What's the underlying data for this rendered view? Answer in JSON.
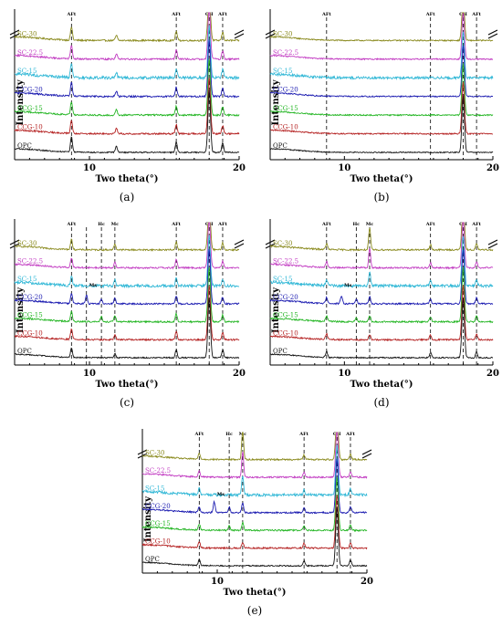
{
  "series_labels": [
    "SC-30",
    "SC-22.5",
    "SC-15",
    "CCG-20",
    "CCG-15",
    "CCG-10",
    "OPC"
  ],
  "chart_data": [
    {
      "type": "line",
      "panel_label": "(a)",
      "xlabel": "Two theta(°)",
      "ylabel": "Intensity",
      "xlim": [
        5,
        20
      ],
      "xticks": [
        "10",
        "20"
      ],
      "reference_lines": [
        {
          "x": 8.8,
          "label": "AFt"
        },
        {
          "x": 15.8,
          "label": "AFt"
        },
        {
          "x": 18.0,
          "label": "CH"
        },
        {
          "x": 18.9,
          "label": "AFt"
        }
      ],
      "series": [
        {
          "name": "SC-30",
          "color": "#8a8a1e",
          "offset": 6,
          "peaks": [
            [
              8.8,
              1.3
            ],
            [
              11.8,
              0.5
            ],
            [
              15.8,
              0.9
            ],
            [
              18.0,
              5.0
            ],
            [
              18.9,
              0.8
            ]
          ],
          "noise": 0.08
        },
        {
          "name": "SC-22.5",
          "color": "#c23cc2",
          "offset": 5,
          "peaks": [
            [
              8.8,
              1.3
            ],
            [
              11.8,
              0.5
            ],
            [
              15.8,
              0.9
            ],
            [
              18.0,
              5.0
            ],
            [
              18.9,
              0.8
            ]
          ],
          "noise": 0.08
        },
        {
          "name": "SC-15",
          "color": "#2fb7d6",
          "offset": 4,
          "peaks": [
            [
              8.8,
              1.3
            ],
            [
              11.8,
              0.5
            ],
            [
              15.8,
              0.9
            ],
            [
              18.0,
              5.0
            ],
            [
              18.9,
              0.8
            ]
          ],
          "noise": 0.14
        },
        {
          "name": "CCG-20",
          "color": "#1a1ab0",
          "offset": 3,
          "peaks": [
            [
              8.8,
              1.3
            ],
            [
              11.8,
              0.5
            ],
            [
              15.8,
              0.9
            ],
            [
              18.0,
              5.5
            ],
            [
              18.9,
              0.8
            ]
          ],
          "noise": 0.08
        },
        {
          "name": "CCG-15",
          "color": "#22b522",
          "offset": 2,
          "peaks": [
            [
              8.8,
              1.3
            ],
            [
              11.8,
              0.5
            ],
            [
              15.8,
              0.9
            ],
            [
              18.0,
              5.5
            ],
            [
              18.9,
              0.8
            ]
          ],
          "noise": 0.08
        },
        {
          "name": "CCG-10",
          "color": "#b42020",
          "offset": 1,
          "peaks": [
            [
              8.8,
              1.3
            ],
            [
              11.8,
              0.5
            ],
            [
              15.8,
              0.9
            ],
            [
              18.0,
              5.5
            ],
            [
              18.9,
              0.8
            ]
          ],
          "noise": 0.08
        },
        {
          "name": "OPC",
          "color": "#111111",
          "offset": 0,
          "peaks": [
            [
              8.8,
              1.5
            ],
            [
              11.8,
              0.6
            ],
            [
              15.8,
              1.0
            ],
            [
              18.0,
              6.0
            ],
            [
              18.9,
              0.9
            ]
          ],
          "noise": 0.06
        }
      ]
    },
    {
      "type": "line",
      "panel_label": "(b)",
      "xlabel": "Two theta(°)",
      "ylabel": "Intensity",
      "xlim": [
        5,
        20
      ],
      "xticks": [
        "10",
        "20"
      ],
      "reference_lines": [
        {
          "x": 8.8,
          "label": "AFt"
        },
        {
          "x": 15.8,
          "label": "AFt"
        },
        {
          "x": 18.0,
          "label": "CH"
        },
        {
          "x": 18.9,
          "label": "AFt"
        }
      ],
      "series": [
        {
          "name": "SC-30",
          "color": "#8a8a1e",
          "offset": 6,
          "peaks": [
            [
              18.0,
              4.5
            ]
          ],
          "noise": 0.06
        },
        {
          "name": "SC-22.5",
          "color": "#c23cc2",
          "offset": 5,
          "peaks": [
            [
              18.0,
              4.5
            ]
          ],
          "noise": 0.06
        },
        {
          "name": "SC-15",
          "color": "#2fb7d6",
          "offset": 4,
          "peaks": [
            [
              18.0,
              4.5
            ]
          ],
          "noise": 0.12
        },
        {
          "name": "CCG-20",
          "color": "#1a1ab0",
          "offset": 3,
          "peaks": [
            [
              18.0,
              5.0
            ]
          ],
          "noise": 0.06
        },
        {
          "name": "CCG-15",
          "color": "#22b522",
          "offset": 2,
          "peaks": [
            [
              18.0,
              5.0
            ]
          ],
          "noise": 0.06
        },
        {
          "name": "CCG-10",
          "color": "#b42020",
          "offset": 1,
          "peaks": [
            [
              18.0,
              5.0
            ]
          ],
          "noise": 0.06
        },
        {
          "name": "OPC",
          "color": "#111111",
          "offset": 0,
          "peaks": [
            [
              18.0,
              5.5
            ]
          ],
          "noise": 0.05
        }
      ]
    },
    {
      "type": "line",
      "panel_label": "(c)",
      "xlabel": "Two theta(°)",
      "ylabel": "Intensity",
      "xlim": [
        5,
        20
      ],
      "xticks": [
        "10",
        "20"
      ],
      "reference_lines": [
        {
          "x": 8.8,
          "label": "AFt"
        },
        {
          "x": 9.8,
          "label": ""
        },
        {
          "x": 10.8,
          "label": "Hc"
        },
        {
          "x": 11.7,
          "label": "Mc"
        },
        {
          "x": 15.8,
          "label": "AFt"
        },
        {
          "x": 18.0,
          "label": "CH"
        },
        {
          "x": 18.9,
          "label": "AFt"
        }
      ],
      "annotations": [
        {
          "x": 9.8,
          "series": "CCG-20",
          "text": "Ms"
        }
      ],
      "series": [
        {
          "name": "SC-30",
          "color": "#8a8a1e",
          "offset": 6,
          "peaks": [
            [
              8.8,
              1.0
            ],
            [
              11.7,
              0.6
            ],
            [
              15.8,
              0.8
            ],
            [
              18.0,
              5.0
            ],
            [
              18.9,
              0.7
            ]
          ],
          "noise": 0.08
        },
        {
          "name": "SC-22.5",
          "color": "#c23cc2",
          "offset": 5,
          "peaks": [
            [
              8.8,
              1.0
            ],
            [
              11.7,
              0.6
            ],
            [
              15.8,
              0.8
            ],
            [
              18.0,
              5.0
            ],
            [
              18.9,
              0.7
            ]
          ],
          "noise": 0.08
        },
        {
          "name": "SC-15",
          "color": "#2fb7d6",
          "offset": 4,
          "peaks": [
            [
              8.8,
              1.0
            ],
            [
              11.7,
              0.6
            ],
            [
              15.8,
              0.8
            ],
            [
              18.0,
              5.0
            ],
            [
              18.9,
              0.7
            ]
          ],
          "noise": 0.14
        },
        {
          "name": "CCG-20",
          "color": "#1a1ab0",
          "offset": 3,
          "peaks": [
            [
              8.8,
              1.0
            ],
            [
              9.8,
              0.9
            ],
            [
              10.8,
              0.5
            ],
            [
              11.7,
              0.6
            ],
            [
              15.8,
              0.8
            ],
            [
              18.0,
              5.5
            ],
            [
              18.9,
              0.7
            ]
          ],
          "noise": 0.08
        },
        {
          "name": "CCG-15",
          "color": "#22b522",
          "offset": 2,
          "peaks": [
            [
              8.8,
              1.0
            ],
            [
              10.8,
              0.5
            ],
            [
              11.7,
              0.6
            ],
            [
              15.8,
              0.8
            ],
            [
              18.0,
              5.5
            ],
            [
              18.9,
              0.7
            ]
          ],
          "noise": 0.08
        },
        {
          "name": "CCG-10",
          "color": "#b42020",
          "offset": 1,
          "peaks": [
            [
              8.8,
              1.0
            ],
            [
              11.7,
              0.5
            ],
            [
              15.8,
              0.8
            ],
            [
              18.0,
              5.5
            ],
            [
              18.9,
              0.7
            ]
          ],
          "noise": 0.08
        },
        {
          "name": "OPC",
          "color": "#111111",
          "offset": 0,
          "peaks": [
            [
              8.8,
              1.0
            ],
            [
              11.7,
              0.4
            ],
            [
              15.8,
              0.8
            ],
            [
              18.0,
              6.0
            ],
            [
              18.9,
              0.8
            ]
          ],
          "noise": 0.06
        }
      ]
    },
    {
      "type": "line",
      "panel_label": "(d)",
      "xlabel": "Two theta(°)",
      "ylabel": "Intensity",
      "xlim": [
        5,
        20
      ],
      "xticks": [
        "10",
        "20"
      ],
      "reference_lines": [
        {
          "x": 8.8,
          "label": "AFt"
        },
        {
          "x": 10.8,
          "label": "Hc"
        },
        {
          "x": 11.7,
          "label": "Mc"
        },
        {
          "x": 15.8,
          "label": "AFt"
        },
        {
          "x": 18.0,
          "label": "CH"
        },
        {
          "x": 18.9,
          "label": "AFt"
        }
      ],
      "annotations": [
        {
          "x": 9.8,
          "series": "CCG-20",
          "text": "Ms"
        }
      ],
      "series": [
        {
          "name": "SC-30",
          "color": "#8a8a1e",
          "offset": 6,
          "peaks": [
            [
              8.8,
              0.6
            ],
            [
              11.7,
              2.2
            ],
            [
              15.8,
              0.5
            ],
            [
              18.0,
              5.0
            ],
            [
              18.9,
              0.6
            ]
          ],
          "noise": 0.08
        },
        {
          "name": "SC-22.5",
          "color": "#c23cc2",
          "offset": 5,
          "peaks": [
            [
              8.8,
              0.6
            ],
            [
              11.7,
              2.0
            ],
            [
              15.8,
              0.5
            ],
            [
              18.0,
              5.0
            ],
            [
              18.9,
              0.6
            ]
          ],
          "noise": 0.08
        },
        {
          "name": "SC-15",
          "color": "#2fb7d6",
          "offset": 4,
          "peaks": [
            [
              8.8,
              0.6
            ],
            [
              11.7,
              1.4
            ],
            [
              15.8,
              0.5
            ],
            [
              18.0,
              5.0
            ],
            [
              18.9,
              0.6
            ]
          ],
          "noise": 0.14
        },
        {
          "name": "CCG-20",
          "color": "#1a1ab0",
          "offset": 3,
          "peaks": [
            [
              8.8,
              0.6
            ],
            [
              9.8,
              0.8
            ],
            [
              10.8,
              0.5
            ],
            [
              11.7,
              0.7
            ],
            [
              15.8,
              0.5
            ],
            [
              18.0,
              5.5
            ],
            [
              18.9,
              0.6
            ]
          ],
          "noise": 0.08
        },
        {
          "name": "CCG-15",
          "color": "#22b522",
          "offset": 2,
          "peaks": [
            [
              8.8,
              0.6
            ],
            [
              10.8,
              0.4
            ],
            [
              11.7,
              0.6
            ],
            [
              15.8,
              0.5
            ],
            [
              18.0,
              5.5
            ],
            [
              18.9,
              0.6
            ]
          ],
          "noise": 0.08
        },
        {
          "name": "CCG-10",
          "color": "#b42020",
          "offset": 1,
          "peaks": [
            [
              8.8,
              0.6
            ],
            [
              11.7,
              0.5
            ],
            [
              15.8,
              0.5
            ],
            [
              18.0,
              5.5
            ],
            [
              18.9,
              0.6
            ]
          ],
          "noise": 0.08
        },
        {
          "name": "OPC",
          "color": "#111111",
          "offset": 0,
          "peaks": [
            [
              8.8,
              0.6
            ],
            [
              15.8,
              0.5
            ],
            [
              18.0,
              6.0
            ],
            [
              18.9,
              0.6
            ]
          ],
          "noise": 0.06
        }
      ]
    },
    {
      "type": "line",
      "panel_label": "(e)",
      "xlabel": "Two theta(°)",
      "ylabel": "Intensity",
      "xlim": [
        5,
        20
      ],
      "xticks": [
        "10",
        "20"
      ],
      "reference_lines": [
        {
          "x": 8.8,
          "label": "AFt"
        },
        {
          "x": 10.8,
          "label": "Hc"
        },
        {
          "x": 11.7,
          "label": "Mc"
        },
        {
          "x": 15.8,
          "label": "AFt"
        },
        {
          "x": 18.0,
          "label": "CH"
        },
        {
          "x": 18.9,
          "label": "AFt"
        }
      ],
      "annotations": [
        {
          "x": 9.8,
          "series": "CCG-20",
          "text": "Ms"
        }
      ],
      "series": [
        {
          "name": "SC-30",
          "color": "#8a8a1e",
          "offset": 6,
          "peaks": [
            [
              8.8,
              0.6
            ],
            [
              11.7,
              3.0
            ],
            [
              15.8,
              0.5
            ],
            [
              18.0,
              5.0
            ],
            [
              18.9,
              0.6
            ]
          ],
          "noise": 0.08
        },
        {
          "name": "SC-22.5",
          "color": "#c23cc2",
          "offset": 5,
          "peaks": [
            [
              8.8,
              0.6
            ],
            [
              11.7,
              2.6
            ],
            [
              15.8,
              0.5
            ],
            [
              18.0,
              5.0
            ],
            [
              18.9,
              0.6
            ]
          ],
          "noise": 0.08
        },
        {
          "name": "SC-15",
          "color": "#2fb7d6",
          "offset": 4,
          "peaks": [
            [
              8.8,
              0.6
            ],
            [
              11.7,
              2.0
            ],
            [
              15.8,
              0.5
            ],
            [
              18.0,
              5.0
            ],
            [
              18.9,
              0.6
            ]
          ],
          "noise": 0.14
        },
        {
          "name": "CCG-20",
          "color": "#1a1ab0",
          "offset": 3,
          "peaks": [
            [
              8.8,
              0.6
            ],
            [
              9.8,
              1.1
            ],
            [
              10.8,
              0.6
            ],
            [
              11.7,
              1.0
            ],
            [
              15.8,
              0.5
            ],
            [
              18.0,
              5.5
            ],
            [
              18.9,
              0.6
            ]
          ],
          "noise": 0.08
        },
        {
          "name": "CCG-15",
          "color": "#22b522",
          "offset": 2,
          "peaks": [
            [
              8.8,
              0.6
            ],
            [
              10.8,
              0.5
            ],
            [
              11.7,
              0.8
            ],
            [
              15.8,
              0.5
            ],
            [
              18.0,
              5.5
            ],
            [
              18.9,
              0.6
            ]
          ],
          "noise": 0.08
        },
        {
          "name": "CCG-10",
          "color": "#b42020",
          "offset": 1,
          "peaks": [
            [
              8.8,
              0.6
            ],
            [
              11.7,
              0.6
            ],
            [
              15.8,
              0.5
            ],
            [
              18.0,
              5.5
            ],
            [
              18.9,
              0.6
            ]
          ],
          "noise": 0.08
        },
        {
          "name": "OPC",
          "color": "#111111",
          "offset": 0,
          "peaks": [
            [
              8.8,
              0.6
            ],
            [
              15.8,
              0.5
            ],
            [
              18.0,
              6.0
            ],
            [
              18.9,
              0.6
            ]
          ],
          "noise": 0.06
        }
      ]
    }
  ]
}
